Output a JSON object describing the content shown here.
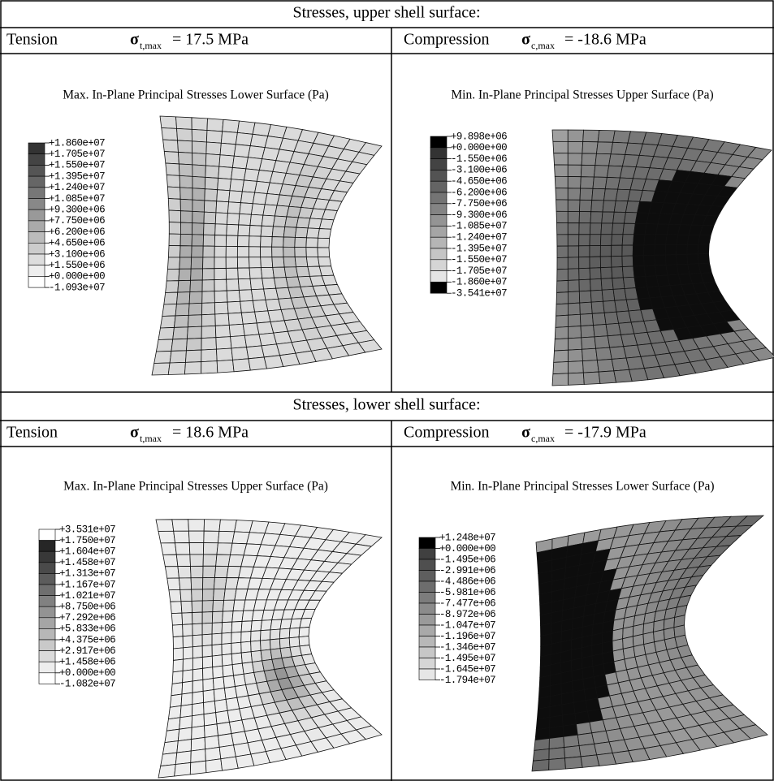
{
  "sections": [
    {
      "title": "Stresses, upper shell surface:",
      "panels": [
        {
          "label": "Tension",
          "symbol": "σ",
          "subscript": "t,max",
          "value": "= 17.5 MPa",
          "plot_title": "Max. In-Plane Principal Stresses Lower Surface (Pa)",
          "legend": [
            "+1.860e+07",
            "+1.705e+07",
            "+1.550e+07",
            "+1.395e+07",
            "+1.240e+07",
            "+1.085e+07",
            "+9.300e+06",
            "+7.750e+06",
            "+6.200e+06",
            "+4.650e+06",
            "+3.100e+06",
            "+1.550e+06",
            "+0.000e+00",
            "-1.093e+07"
          ]
        },
        {
          "label": "Compression",
          "symbol": "σ",
          "subscript": "c,max",
          "value": "= -18.6 MPa",
          "plot_title": "Min. In-Plane Principal Stresses Upper Surface (Pa)",
          "legend": [
            "+9.898e+06",
            "+0.000e+00",
            "-1.550e+06",
            "-3.100e+06",
            "-4.650e+06",
            "-6.200e+06",
            "-7.750e+06",
            "-9.300e+06",
            "-1.085e+07",
            "-1.240e+07",
            "-1.395e+07",
            "-1.550e+07",
            "-1.705e+07",
            "-1.860e+07",
            "-3.541e+07"
          ]
        }
      ]
    },
    {
      "title": "Stresses, lower shell surface:",
      "panels": [
        {
          "label": "Tension",
          "symbol": "σ",
          "subscript": "t,max",
          "value": "= 18.6 MPa",
          "plot_title": "Max. In-Plane Principal Stresses Upper Surface (Pa)",
          "legend": [
            "+3.531e+07",
            "+1.750e+07",
            "+1.604e+07",
            "+1.458e+07",
            "+1.313e+07",
            "+1.167e+07",
            "+1.021e+07",
            "+8.750e+06",
            "+7.292e+06",
            "+5.833e+06",
            "+4.375e+06",
            "+2.917e+06",
            "+1.458e+06",
            "+0.000e+00",
            "-1.082e+07"
          ]
        },
        {
          "label": "Compression",
          "symbol": "σ",
          "subscript": "c,max",
          "value": "= -17.9 MPa",
          "plot_title": "Min. In-Plane Principal Stresses Lower Surface (Pa)",
          "legend": [
            "+1.248e+07",
            "+0.000e+00",
            "-1.495e+06",
            "-2.991e+06",
            "-4.486e+06",
            "-5.981e+06",
            "-7.477e+06",
            "-8.972e+06",
            "-1.047e+07",
            "-1.196e+07",
            "-1.346e+07",
            "-1.495e+07",
            "-1.645e+07",
            "-1.794e+07"
          ]
        }
      ]
    }
  ]
}
